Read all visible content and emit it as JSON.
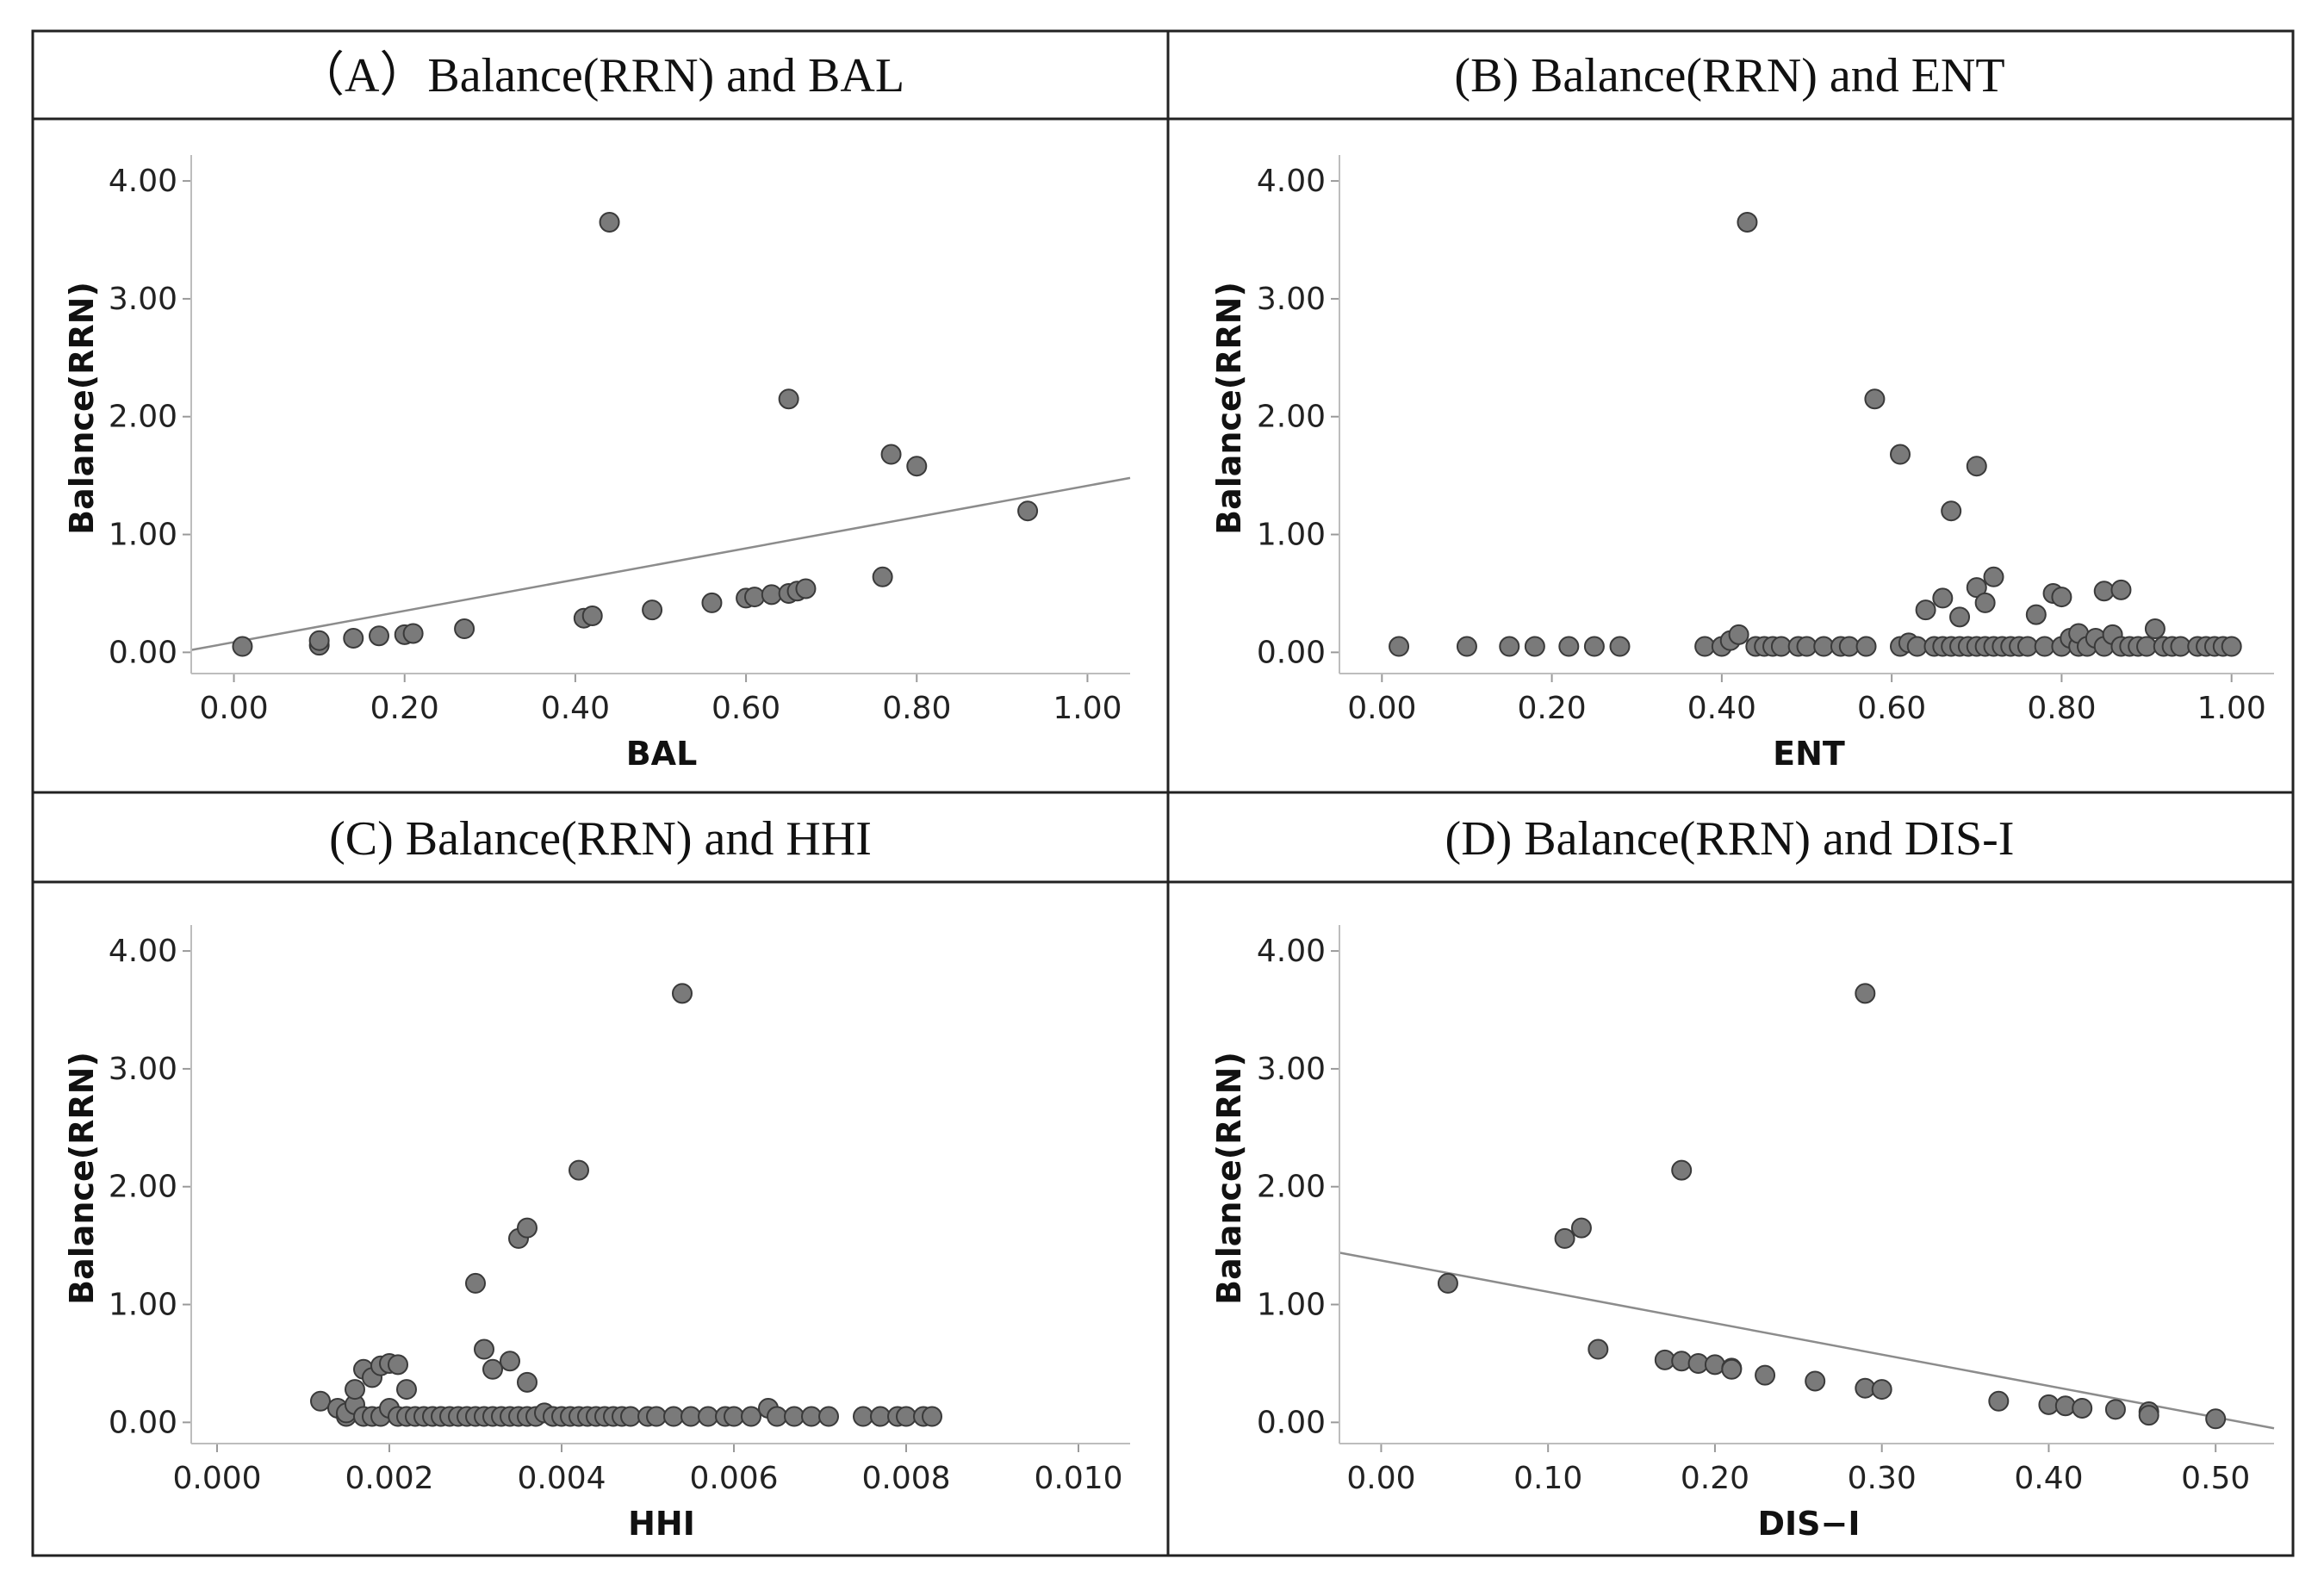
{
  "chart_data": [
    {
      "type": "scatter",
      "title": "（A）Balance(RRN) and BAL",
      "xlabel": "BAL",
      "ylabel": "Balance(RRN)",
      "xlim": [
        -0.05,
        1.05
      ],
      "ylim": [
        -0.18,
        4.22
      ],
      "x_ticks": [
        "0.00",
        "0.20",
        "0.40",
        "0.60",
        "0.80",
        "1.00"
      ],
      "y_ticks": [
        "0.00",
        "1.00",
        "2.00",
        "3.00",
        "4.00"
      ],
      "fit_line": {
        "x": [
          -0.05,
          1.05
        ],
        "y": [
          0.02,
          1.48
        ]
      },
      "points": [
        {
          "x": 0.01,
          "y": 0.05
        },
        {
          "x": 0.1,
          "y": 0.06
        },
        {
          "x": 0.1,
          "y": 0.1
        },
        {
          "x": 0.14,
          "y": 0.12
        },
        {
          "x": 0.17,
          "y": 0.14
        },
        {
          "x": 0.2,
          "y": 0.15
        },
        {
          "x": 0.21,
          "y": 0.16
        },
        {
          "x": 0.27,
          "y": 0.2
        },
        {
          "x": 0.41,
          "y": 0.29
        },
        {
          "x": 0.42,
          "y": 0.31
        },
        {
          "x": 0.49,
          "y": 0.36
        },
        {
          "x": 0.56,
          "y": 0.42
        },
        {
          "x": 0.6,
          "y": 0.46
        },
        {
          "x": 0.61,
          "y": 0.47
        },
        {
          "x": 0.63,
          "y": 0.49
        },
        {
          "x": 0.65,
          "y": 0.5
        },
        {
          "x": 0.66,
          "y": 0.52
        },
        {
          "x": 0.67,
          "y": 0.54
        },
        {
          "x": 0.76,
          "y": 0.64
        },
        {
          "x": 0.93,
          "y": 1.2
        },
        {
          "x": 0.77,
          "y": 1.68
        },
        {
          "x": 0.8,
          "y": 1.58
        },
        {
          "x": 0.65,
          "y": 2.15
        },
        {
          "x": 0.44,
          "y": 3.65
        }
      ]
    },
    {
      "type": "scatter",
      "title": "(B) Balance(RRN) and ENT",
      "xlabel": "ENT",
      "ylabel": "Balance(RRN)",
      "xlim": [
        -0.05,
        1.05
      ],
      "ylim": [
        -0.18,
        4.22
      ],
      "x_ticks": [
        "0.00",
        "0.20",
        "0.40",
        "0.60",
        "0.80",
        "1.00"
      ],
      "y_ticks": [
        "0.00",
        "1.00",
        "2.00",
        "3.00",
        "4.00"
      ],
      "points": [
        {
          "x": 0.02,
          "y": 0.05
        },
        {
          "x": 0.1,
          "y": 0.05
        },
        {
          "x": 0.15,
          "y": 0.05
        },
        {
          "x": 0.18,
          "y": 0.05
        },
        {
          "x": 0.22,
          "y": 0.05
        },
        {
          "x": 0.25,
          "y": 0.05
        },
        {
          "x": 0.28,
          "y": 0.05
        },
        {
          "x": 0.38,
          "y": 0.05
        },
        {
          "x": 0.4,
          "y": 0.05
        },
        {
          "x": 0.41,
          "y": 0.1
        },
        {
          "x": 0.42,
          "y": 0.15
        },
        {
          "x": 0.44,
          "y": 0.05
        },
        {
          "x": 0.45,
          "y": 0.05
        },
        {
          "x": 0.46,
          "y": 0.05
        },
        {
          "x": 0.47,
          "y": 0.05
        },
        {
          "x": 0.49,
          "y": 0.05
        },
        {
          "x": 0.5,
          "y": 0.05
        },
        {
          "x": 0.52,
          "y": 0.05
        },
        {
          "x": 0.54,
          "y": 0.05
        },
        {
          "x": 0.55,
          "y": 0.05
        },
        {
          "x": 0.57,
          "y": 0.05
        },
        {
          "x": 0.61,
          "y": 0.05
        },
        {
          "x": 0.62,
          "y": 0.08
        },
        {
          "x": 0.63,
          "y": 0.05
        },
        {
          "x": 0.64,
          "y": 0.36
        },
        {
          "x": 0.65,
          "y": 0.05
        },
        {
          "x": 0.66,
          "y": 0.05
        },
        {
          "x": 0.66,
          "y": 0.46
        },
        {
          "x": 0.67,
          "y": 0.05
        },
        {
          "x": 0.68,
          "y": 0.05
        },
        {
          "x": 0.68,
          "y": 0.3
        },
        {
          "x": 0.69,
          "y": 0.05
        },
        {
          "x": 0.7,
          "y": 0.05
        },
        {
          "x": 0.7,
          "y": 0.55
        },
        {
          "x": 0.71,
          "y": 0.05
        },
        {
          "x": 0.71,
          "y": 0.42
        },
        {
          "x": 0.72,
          "y": 0.64
        },
        {
          "x": 0.72,
          "y": 0.05
        },
        {
          "x": 0.73,
          "y": 0.05
        },
        {
          "x": 0.74,
          "y": 0.05
        },
        {
          "x": 0.75,
          "y": 0.05
        },
        {
          "x": 0.76,
          "y": 0.05
        },
        {
          "x": 0.77,
          "y": 0.32
        },
        {
          "x": 0.78,
          "y": 0.05
        },
        {
          "x": 0.79,
          "y": 0.5
        },
        {
          "x": 0.8,
          "y": 0.47
        },
        {
          "x": 0.8,
          "y": 0.05
        },
        {
          "x": 0.81,
          "y": 0.12
        },
        {
          "x": 0.82,
          "y": 0.05
        },
        {
          "x": 0.82,
          "y": 0.16
        },
        {
          "x": 0.83,
          "y": 0.05
        },
        {
          "x": 0.84,
          "y": 0.12
        },
        {
          "x": 0.85,
          "y": 0.05
        },
        {
          "x": 0.85,
          "y": 0.52
        },
        {
          "x": 0.86,
          "y": 0.15
        },
        {
          "x": 0.87,
          "y": 0.53
        },
        {
          "x": 0.87,
          "y": 0.05
        },
        {
          "x": 0.88,
          "y": 0.05
        },
        {
          "x": 0.89,
          "y": 0.05
        },
        {
          "x": 0.9,
          "y": 0.05
        },
        {
          "x": 0.91,
          "y": 0.2
        },
        {
          "x": 0.92,
          "y": 0.05
        },
        {
          "x": 0.93,
          "y": 0.05
        },
        {
          "x": 0.94,
          "y": 0.05
        },
        {
          "x": 0.96,
          "y": 0.05
        },
        {
          "x": 0.97,
          "y": 0.05
        },
        {
          "x": 0.98,
          "y": 0.05
        },
        {
          "x": 0.99,
          "y": 0.05
        },
        {
          "x": 1.0,
          "y": 0.05
        },
        {
          "x": 0.67,
          "y": 1.2
        },
        {
          "x": 0.7,
          "y": 1.58
        },
        {
          "x": 0.61,
          "y": 1.68
        },
        {
          "x": 0.58,
          "y": 2.15
        },
        {
          "x": 0.43,
          "y": 3.65
        }
      ]
    },
    {
      "type": "scatter",
      "title": "(C) Balance(RRN) and HHI",
      "xlabel": "HHI",
      "ylabel": "Balance(RRN)",
      "xlim": [
        -0.0003,
        0.0106
      ],
      "ylim": [
        -0.18,
        4.22
      ],
      "x_ticks": [
        "0.000",
        "0.002",
        "0.004",
        "0.006",
        "0.008",
        "0.010"
      ],
      "y_ticks": [
        "0.00",
        "1.00",
        "2.00",
        "3.00",
        "4.00"
      ],
      "points": [
        {
          "x": 0.0012,
          "y": 0.18
        },
        {
          "x": 0.0014,
          "y": 0.12
        },
        {
          "x": 0.0015,
          "y": 0.05
        },
        {
          "x": 0.0015,
          "y": 0.08
        },
        {
          "x": 0.0016,
          "y": 0.15
        },
        {
          "x": 0.0016,
          "y": 0.28
        },
        {
          "x": 0.0017,
          "y": 0.45
        },
        {
          "x": 0.0017,
          "y": 0.05
        },
        {
          "x": 0.0018,
          "y": 0.05
        },
        {
          "x": 0.0018,
          "y": 0.38
        },
        {
          "x": 0.0019,
          "y": 0.48
        },
        {
          "x": 0.0019,
          "y": 0.05
        },
        {
          "x": 0.002,
          "y": 0.5
        },
        {
          "x": 0.002,
          "y": 0.12
        },
        {
          "x": 0.0021,
          "y": 0.49
        },
        {
          "x": 0.0021,
          "y": 0.05
        },
        {
          "x": 0.0022,
          "y": 0.05
        },
        {
          "x": 0.0022,
          "y": 0.28
        },
        {
          "x": 0.0023,
          "y": 0.05
        },
        {
          "x": 0.0024,
          "y": 0.05
        },
        {
          "x": 0.0025,
          "y": 0.05
        },
        {
          "x": 0.0026,
          "y": 0.05
        },
        {
          "x": 0.0027,
          "y": 0.05
        },
        {
          "x": 0.0028,
          "y": 0.05
        },
        {
          "x": 0.0029,
          "y": 0.05
        },
        {
          "x": 0.003,
          "y": 0.05
        },
        {
          "x": 0.003,
          "y": 1.18
        },
        {
          "x": 0.0031,
          "y": 0.62
        },
        {
          "x": 0.0031,
          "y": 0.05
        },
        {
          "x": 0.0032,
          "y": 0.45
        },
        {
          "x": 0.0032,
          "y": 0.05
        },
        {
          "x": 0.0033,
          "y": 0.05
        },
        {
          "x": 0.0034,
          "y": 0.05
        },
        {
          "x": 0.0034,
          "y": 0.52
        },
        {
          "x": 0.0035,
          "y": 0.05
        },
        {
          "x": 0.0035,
          "y": 1.56
        },
        {
          "x": 0.0036,
          "y": 0.05
        },
        {
          "x": 0.0036,
          "y": 1.65
        },
        {
          "x": 0.0036,
          "y": 0.34
        },
        {
          "x": 0.0037,
          "y": 0.05
        },
        {
          "x": 0.0038,
          "y": 0.08
        },
        {
          "x": 0.0039,
          "y": 0.05
        },
        {
          "x": 0.004,
          "y": 0.05
        },
        {
          "x": 0.0041,
          "y": 0.05
        },
        {
          "x": 0.0042,
          "y": 0.05
        },
        {
          "x": 0.0042,
          "y": 2.14
        },
        {
          "x": 0.0043,
          "y": 0.05
        },
        {
          "x": 0.0044,
          "y": 0.05
        },
        {
          "x": 0.0045,
          "y": 0.05
        },
        {
          "x": 0.0046,
          "y": 0.05
        },
        {
          "x": 0.0047,
          "y": 0.05
        },
        {
          "x": 0.0048,
          "y": 0.05
        },
        {
          "x": 0.005,
          "y": 0.05
        },
        {
          "x": 0.0051,
          "y": 0.05
        },
        {
          "x": 0.0053,
          "y": 0.05
        },
        {
          "x": 0.0054,
          "y": 3.64
        },
        {
          "x": 0.0055,
          "y": 0.05
        },
        {
          "x": 0.0057,
          "y": 0.05
        },
        {
          "x": 0.0059,
          "y": 0.05
        },
        {
          "x": 0.006,
          "y": 0.05
        },
        {
          "x": 0.0062,
          "y": 0.05
        },
        {
          "x": 0.0064,
          "y": 0.12
        },
        {
          "x": 0.0065,
          "y": 0.05
        },
        {
          "x": 0.0067,
          "y": 0.05
        },
        {
          "x": 0.0069,
          "y": 0.05
        },
        {
          "x": 0.0071,
          "y": 0.05
        },
        {
          "x": 0.0075,
          "y": 0.05
        },
        {
          "x": 0.0077,
          "y": 0.05
        },
        {
          "x": 0.0079,
          "y": 0.05
        },
        {
          "x": 0.008,
          "y": 0.05
        },
        {
          "x": 0.0082,
          "y": 0.05
        },
        {
          "x": 0.0083,
          "y": 0.05
        }
      ]
    },
    {
      "type": "scatter",
      "title": "(D) Balance(RRN) and DIS-I",
      "xlabel": "DIS−I",
      "ylabel": "Balance(RRN)",
      "xlim": [
        -0.025,
        0.535
      ],
      "ylim": [
        -0.18,
        4.22
      ],
      "x_ticks": [
        "0.00",
        "0.10",
        "0.20",
        "0.30",
        "0.40",
        "0.50"
      ],
      "y_ticks": [
        "0.00",
        "1.00",
        "2.00",
        "3.00",
        "4.00"
      ],
      "fit_line": {
        "x": [
          -0.025,
          0.535
        ],
        "y": [
          1.44,
          -0.05
        ]
      },
      "points": [
        {
          "x": 0.04,
          "y": 1.18
        },
        {
          "x": 0.11,
          "y": 1.56
        },
        {
          "x": 0.12,
          "y": 1.65
        },
        {
          "x": 0.13,
          "y": 0.62
        },
        {
          "x": 0.18,
          "y": 2.14
        },
        {
          "x": 0.17,
          "y": 0.53
        },
        {
          "x": 0.18,
          "y": 0.52
        },
        {
          "x": 0.19,
          "y": 0.5
        },
        {
          "x": 0.2,
          "y": 0.49
        },
        {
          "x": 0.21,
          "y": 0.46
        },
        {
          "x": 0.21,
          "y": 0.45
        },
        {
          "x": 0.23,
          "y": 0.4
        },
        {
          "x": 0.26,
          "y": 0.35
        },
        {
          "x": 0.29,
          "y": 0.29
        },
        {
          "x": 0.3,
          "y": 0.28
        },
        {
          "x": 0.29,
          "y": 3.64
        },
        {
          "x": 0.37,
          "y": 0.18
        },
        {
          "x": 0.4,
          "y": 0.15
        },
        {
          "x": 0.41,
          "y": 0.14
        },
        {
          "x": 0.42,
          "y": 0.12
        },
        {
          "x": 0.44,
          "y": 0.11
        },
        {
          "x": 0.46,
          "y": 0.09
        },
        {
          "x": 0.46,
          "y": 0.06
        },
        {
          "x": 0.5,
          "y": 0.03
        }
      ]
    }
  ]
}
